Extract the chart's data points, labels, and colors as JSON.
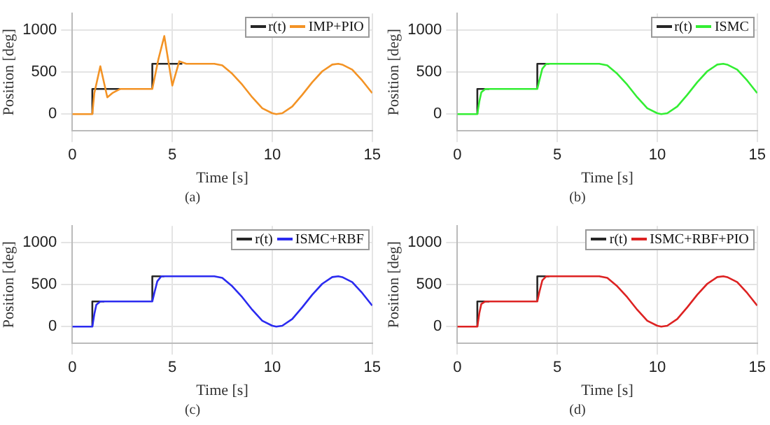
{
  "chart_data": [
    {
      "type": "line",
      "xlabel": "Time [s]",
      "ylabel": "Position [deg]",
      "annotations": [
        "(a)"
      ],
      "xlim": [
        0,
        15
      ],
      "xticks": [
        0,
        5,
        10,
        15
      ],
      "ylim": [
        -200,
        1200
      ],
      "yticks": [
        0,
        500,
        1000
      ],
      "grid": true,
      "legend": "top right",
      "marker": "none",
      "series": [
        {
          "name": "r(t)",
          "color": "#262626",
          "x": [
            1,
            1,
            2.4,
            3,
            4,
            4,
            5.5
          ],
          "values": [
            0,
            300,
            300,
            null,
            300,
            600,
            600
          ]
        },
        {
          "name": "IMP+PIO",
          "color": "#f39325",
          "x": [
            0,
            1,
            1.1,
            1.4,
            1.75,
            2,
            2.4,
            3,
            4,
            4.3,
            4.6,
            5,
            5.35,
            5.7,
            6,
            7.1,
            7.5,
            8,
            8.5,
            9,
            9.5,
            10,
            10.2,
            10.5,
            11,
            11.5,
            12,
            12.5,
            13,
            13.3,
            13.5,
            14,
            14.5,
            15
          ],
          "values": [
            0,
            0,
            250,
            570,
            200,
            250,
            300,
            300,
            300,
            650,
            930,
            340,
            630,
            600,
            600,
            600,
            580,
            480,
            350,
            200,
            70,
            10,
            0,
            10,
            90,
            230,
            380,
            510,
            590,
            600,
            590,
            530,
            400,
            250
          ]
        }
      ]
    },
    {
      "type": "line",
      "xlabel": "Time [s]",
      "ylabel": "Position [deg]",
      "annotations": [
        "(b)"
      ],
      "xlim": [
        0,
        15
      ],
      "xticks": [
        0,
        5,
        10,
        15
      ],
      "ylim": [
        -200,
        1200
      ],
      "yticks": [
        0,
        500,
        1000
      ],
      "grid": true,
      "legend": "top right",
      "marker": "none",
      "series": [
        {
          "name": "r(t)",
          "color": "#262626",
          "x": [
            1,
            1,
            1.6,
            3,
            4,
            4,
            4.6
          ],
          "values": [
            0,
            300,
            300,
            null,
            300,
            600,
            600
          ]
        },
        {
          "name": "ISMC",
          "color": "#33ee33",
          "x": [
            0,
            1,
            1.1,
            1.2,
            1.4,
            1.6,
            4,
            4.1,
            4.25,
            4.45,
            4.6,
            7.1,
            7.5,
            8,
            8.5,
            9,
            9.5,
            10,
            10.2,
            10.5,
            11,
            11.5,
            12,
            12.5,
            13,
            13.3,
            13.5,
            14,
            14.5,
            15
          ],
          "values": [
            0,
            0,
            150,
            260,
            300,
            300,
            300,
            400,
            540,
            600,
            600,
            600,
            580,
            480,
            350,
            200,
            70,
            10,
            0,
            10,
            90,
            230,
            380,
            510,
            590,
            600,
            590,
            530,
            400,
            250
          ]
        }
      ]
    },
    {
      "type": "line",
      "xlabel": "Time [s]",
      "ylabel": "Position [deg]",
      "annotations": [
        "(c)"
      ],
      "xlim": [
        0,
        15
      ],
      "xticks": [
        0,
        5,
        10,
        15
      ],
      "ylim": [
        -200,
        1200
      ],
      "yticks": [
        0,
        500,
        1000
      ],
      "grid": true,
      "legend": "top right",
      "marker": "none",
      "series": [
        {
          "name": "r(t)",
          "color": "#262626",
          "x": [
            1,
            1,
            1.6,
            3,
            4,
            4,
            4.6
          ],
          "values": [
            0,
            300,
            300,
            null,
            300,
            600,
            600
          ]
        },
        {
          "name": "ISMC+RBF",
          "color": "#2b2bf0",
          "x": [
            0,
            1,
            1.1,
            1.2,
            1.4,
            1.6,
            4,
            4.1,
            4.25,
            4.45,
            4.6,
            7.1,
            7.5,
            8,
            8.5,
            9,
            9.5,
            10,
            10.2,
            10.5,
            11,
            11.5,
            12,
            12.5,
            13,
            13.3,
            13.5,
            14,
            14.5,
            15
          ],
          "values": [
            0,
            0,
            150,
            260,
            300,
            300,
            300,
            400,
            540,
            600,
            600,
            600,
            580,
            480,
            350,
            200,
            70,
            10,
            0,
            10,
            90,
            230,
            380,
            510,
            590,
            600,
            590,
            530,
            400,
            250
          ]
        }
      ]
    },
    {
      "type": "line",
      "xlabel": "Time [s]",
      "ylabel": "Position [deg]",
      "annotations": [
        "(d)"
      ],
      "xlim": [
        0,
        15
      ],
      "xticks": [
        0,
        5,
        10,
        15
      ],
      "ylim": [
        -200,
        1200
      ],
      "yticks": [
        0,
        500,
        1000
      ],
      "grid": true,
      "legend": "top right",
      "marker": "none",
      "series": [
        {
          "name": "r(t)",
          "color": "#262626",
          "x": [
            1,
            1,
            1.6,
            3,
            4,
            4,
            4.6
          ],
          "values": [
            0,
            300,
            300,
            null,
            300,
            600,
            600
          ]
        },
        {
          "name": "ISMC+RBF+PIO",
          "color": "#dd2222",
          "x": [
            0,
            1,
            1.1,
            1.2,
            1.4,
            1.6,
            4,
            4.1,
            4.25,
            4.45,
            4.6,
            7.1,
            7.5,
            8,
            8.5,
            9,
            9.5,
            10,
            10.2,
            10.5,
            11,
            11.5,
            12,
            12.5,
            13,
            13.3,
            13.5,
            14,
            14.5,
            15
          ],
          "values": [
            0,
            0,
            160,
            270,
            300,
            300,
            300,
            410,
            550,
            600,
            600,
            600,
            580,
            480,
            350,
            200,
            70,
            10,
            0,
            10,
            90,
            230,
            380,
            510,
            590,
            600,
            590,
            530,
            400,
            250
          ]
        }
      ]
    }
  ]
}
